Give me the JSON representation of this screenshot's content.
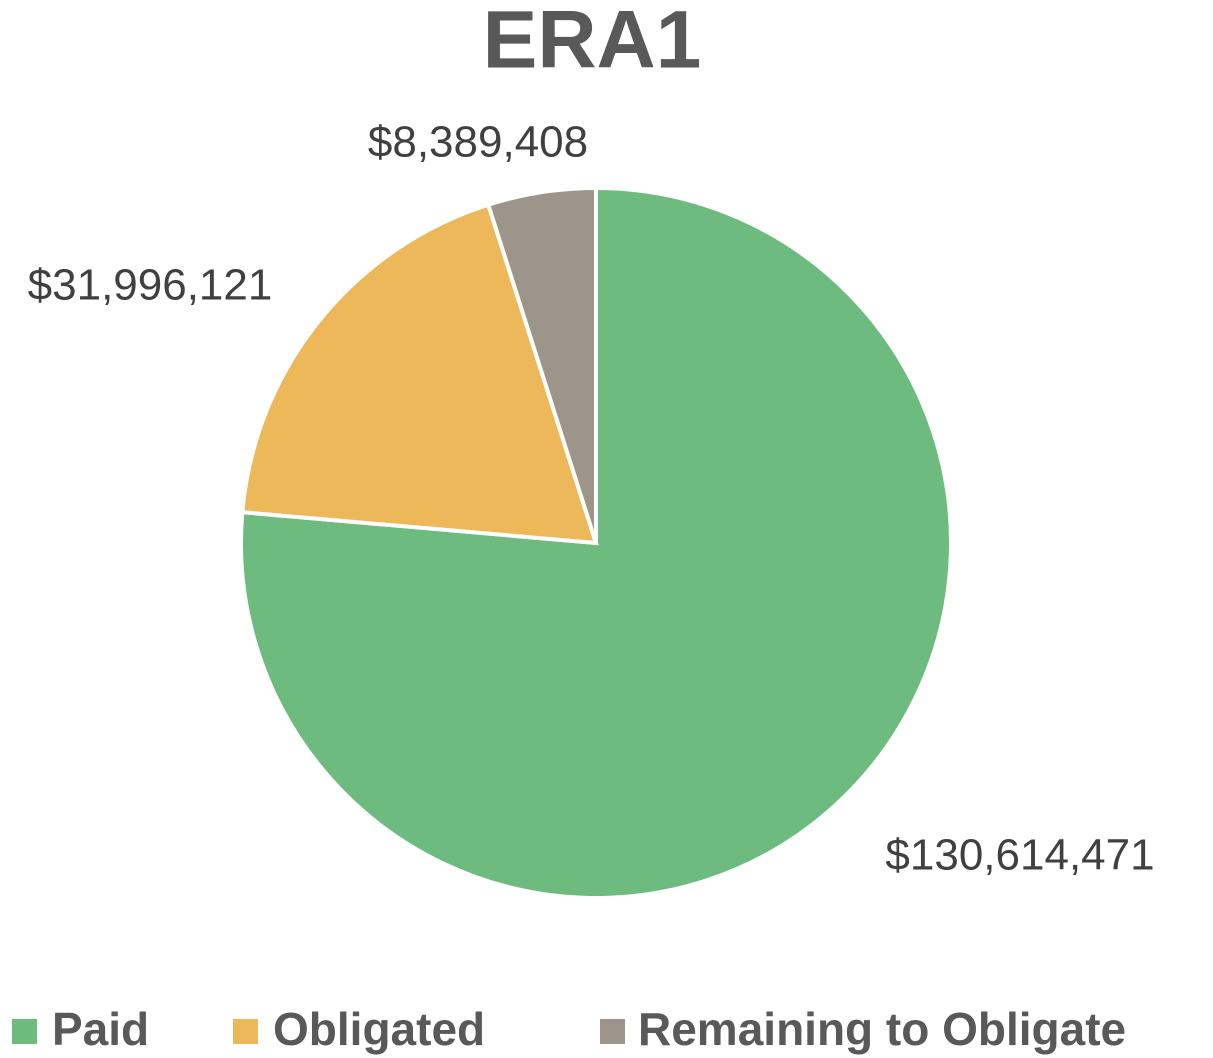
{
  "chart_data": {
    "type": "pie",
    "title": "ERA1",
    "categories": [
      "Paid",
      "Obligated",
      "Remaining to Obligate"
    ],
    "values": [
      130614471,
      31996121,
      8389408
    ],
    "value_labels": [
      "$130,614,471",
      "$31,996,121",
      "$8,389,408"
    ],
    "colors": [
      "#6dbb7f",
      "#ecb85a",
      "#9e958a"
    ],
    "legend": "bottom"
  }
}
